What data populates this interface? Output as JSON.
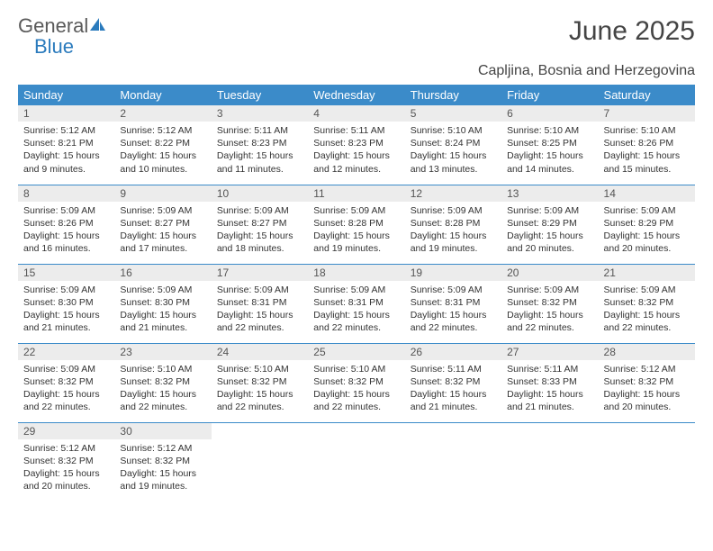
{
  "logo": {
    "text1": "General",
    "text2": "Blue"
  },
  "title": "June 2025",
  "location": "Capljina, Bosnia and Herzegovina",
  "colors": {
    "header_bg": "#3b8bc9",
    "header_text": "#ffffff",
    "daynum_bg": "#ececec",
    "border": "#3b8bc9",
    "logo_gray": "#5a5a5a",
    "logo_blue": "#2b7bbd"
  },
  "weekdays": [
    "Sunday",
    "Monday",
    "Tuesday",
    "Wednesday",
    "Thursday",
    "Friday",
    "Saturday"
  ],
  "days": [
    {
      "n": "1",
      "sr": "5:12 AM",
      "ss": "8:21 PM",
      "dl": "15 hours and 9 minutes."
    },
    {
      "n": "2",
      "sr": "5:12 AM",
      "ss": "8:22 PM",
      "dl": "15 hours and 10 minutes."
    },
    {
      "n": "3",
      "sr": "5:11 AM",
      "ss": "8:23 PM",
      "dl": "15 hours and 11 minutes."
    },
    {
      "n": "4",
      "sr": "5:11 AM",
      "ss": "8:23 PM",
      "dl": "15 hours and 12 minutes."
    },
    {
      "n": "5",
      "sr": "5:10 AM",
      "ss": "8:24 PM",
      "dl": "15 hours and 13 minutes."
    },
    {
      "n": "6",
      "sr": "5:10 AM",
      "ss": "8:25 PM",
      "dl": "15 hours and 14 minutes."
    },
    {
      "n": "7",
      "sr": "5:10 AM",
      "ss": "8:26 PM",
      "dl": "15 hours and 15 minutes."
    },
    {
      "n": "8",
      "sr": "5:09 AM",
      "ss": "8:26 PM",
      "dl": "15 hours and 16 minutes."
    },
    {
      "n": "9",
      "sr": "5:09 AM",
      "ss": "8:27 PM",
      "dl": "15 hours and 17 minutes."
    },
    {
      "n": "10",
      "sr": "5:09 AM",
      "ss": "8:27 PM",
      "dl": "15 hours and 18 minutes."
    },
    {
      "n": "11",
      "sr": "5:09 AM",
      "ss": "8:28 PM",
      "dl": "15 hours and 19 minutes."
    },
    {
      "n": "12",
      "sr": "5:09 AM",
      "ss": "8:28 PM",
      "dl": "15 hours and 19 minutes."
    },
    {
      "n": "13",
      "sr": "5:09 AM",
      "ss": "8:29 PM",
      "dl": "15 hours and 20 minutes."
    },
    {
      "n": "14",
      "sr": "5:09 AM",
      "ss": "8:29 PM",
      "dl": "15 hours and 20 minutes."
    },
    {
      "n": "15",
      "sr": "5:09 AM",
      "ss": "8:30 PM",
      "dl": "15 hours and 21 minutes."
    },
    {
      "n": "16",
      "sr": "5:09 AM",
      "ss": "8:30 PM",
      "dl": "15 hours and 21 minutes."
    },
    {
      "n": "17",
      "sr": "5:09 AM",
      "ss": "8:31 PM",
      "dl": "15 hours and 22 minutes."
    },
    {
      "n": "18",
      "sr": "5:09 AM",
      "ss": "8:31 PM",
      "dl": "15 hours and 22 minutes."
    },
    {
      "n": "19",
      "sr": "5:09 AM",
      "ss": "8:31 PM",
      "dl": "15 hours and 22 minutes."
    },
    {
      "n": "20",
      "sr": "5:09 AM",
      "ss": "8:32 PM",
      "dl": "15 hours and 22 minutes."
    },
    {
      "n": "21",
      "sr": "5:09 AM",
      "ss": "8:32 PM",
      "dl": "15 hours and 22 minutes."
    },
    {
      "n": "22",
      "sr": "5:09 AM",
      "ss": "8:32 PM",
      "dl": "15 hours and 22 minutes."
    },
    {
      "n": "23",
      "sr": "5:10 AM",
      "ss": "8:32 PM",
      "dl": "15 hours and 22 minutes."
    },
    {
      "n": "24",
      "sr": "5:10 AM",
      "ss": "8:32 PM",
      "dl": "15 hours and 22 minutes."
    },
    {
      "n": "25",
      "sr": "5:10 AM",
      "ss": "8:32 PM",
      "dl": "15 hours and 22 minutes."
    },
    {
      "n": "26",
      "sr": "5:11 AM",
      "ss": "8:32 PM",
      "dl": "15 hours and 21 minutes."
    },
    {
      "n": "27",
      "sr": "5:11 AM",
      "ss": "8:33 PM",
      "dl": "15 hours and 21 minutes."
    },
    {
      "n": "28",
      "sr": "5:12 AM",
      "ss": "8:32 PM",
      "dl": "15 hours and 20 minutes."
    },
    {
      "n": "29",
      "sr": "5:12 AM",
      "ss": "8:32 PM",
      "dl": "15 hours and 20 minutes."
    },
    {
      "n": "30",
      "sr": "5:12 AM",
      "ss": "8:32 PM",
      "dl": "15 hours and 19 minutes."
    }
  ],
  "labels": {
    "sunrise": "Sunrise: ",
    "sunset": "Sunset: ",
    "daylight": "Daylight: "
  }
}
